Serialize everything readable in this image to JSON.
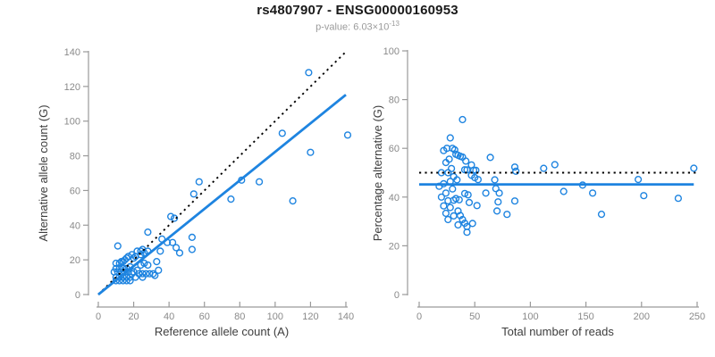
{
  "header": {
    "title": "rs4807907 - ENSG00000160953",
    "subtitle_base": "p-value: 6.03×10",
    "subtitle_exponent": "-13"
  },
  "colors": {
    "points": "#1E84E0",
    "fit_line": "#1E84E0",
    "reference_line": "#000000",
    "axis": "#9a9a9a",
    "tick_label": "#8a8a8a",
    "axis_title": "#3d3d3d",
    "title": "#1a1a1a",
    "subtitle": "#9b9b9b"
  },
  "points_ref_alt": [
    [
      10,
      8
    ],
    [
      12,
      8
    ],
    [
      14,
      8
    ],
    [
      16,
      8
    ],
    [
      18,
      8
    ],
    [
      25,
      10
    ],
    [
      10,
      10
    ],
    [
      12,
      10
    ],
    [
      14,
      10
    ],
    [
      16,
      10
    ],
    [
      18,
      10
    ],
    [
      21,
      10
    ],
    [
      32,
      11
    ],
    [
      19,
      12
    ],
    [
      23,
      12
    ],
    [
      25,
      12
    ],
    [
      27,
      12
    ],
    [
      29,
      12
    ],
    [
      31,
      12
    ],
    [
      9,
      13
    ],
    [
      11,
      13
    ],
    [
      13,
      13
    ],
    [
      15,
      13
    ],
    [
      17,
      13
    ],
    [
      20,
      13
    ],
    [
      34,
      14
    ],
    [
      22,
      14
    ],
    [
      10,
      15
    ],
    [
      12,
      15
    ],
    [
      14,
      15
    ],
    [
      16,
      15
    ],
    [
      18,
      16
    ],
    [
      24,
      17
    ],
    [
      28,
      17
    ],
    [
      26,
      18
    ],
    [
      10,
      18
    ],
    [
      12,
      18
    ],
    [
      13,
      19
    ],
    [
      14,
      19
    ],
    [
      33,
      19
    ],
    [
      15,
      20
    ],
    [
      16,
      21
    ],
    [
      20,
      21
    ],
    [
      17,
      22
    ],
    [
      21,
      22
    ],
    [
      19,
      23
    ],
    [
      24,
      23
    ],
    [
      22,
      25
    ],
    [
      26,
      24
    ],
    [
      24,
      25
    ],
    [
      28,
      25
    ],
    [
      35,
      25
    ],
    [
      25,
      26
    ],
    [
      11,
      28
    ],
    [
      28,
      36
    ],
    [
      39,
      30
    ],
    [
      42,
      30
    ],
    [
      36,
      32
    ],
    [
      53,
      33
    ],
    [
      44,
      27
    ],
    [
      46,
      24
    ],
    [
      53,
      26
    ],
    [
      41,
      45
    ],
    [
      43,
      44
    ],
    [
      54,
      58
    ],
    [
      57,
      65
    ],
    [
      75,
      55
    ],
    [
      81,
      66
    ],
    [
      91,
      65
    ],
    [
      110,
      54
    ],
    [
      104,
      93
    ],
    [
      120,
      82
    ],
    [
      141,
      92
    ],
    [
      119,
      128
    ]
  ],
  "chart_data": [
    {
      "type": "scatter",
      "id": "left",
      "xlabel": "Reference allele count (A)",
      "ylabel": "Alternative allele count (G)",
      "xlim": [
        0,
        140
      ],
      "ylim": [
        0,
        140
      ],
      "xticks": [
        0,
        20,
        40,
        60,
        80,
        100,
        120,
        140
      ],
      "yticks": [
        0,
        20,
        40,
        60,
        80,
        100,
        120,
        140
      ],
      "points_source": "x = ref, y = alt (from points_ref_alt)",
      "grid": false,
      "lines": [
        {
          "name": "identity-line",
          "style": "dotted",
          "color": "#000000",
          "from": [
            0,
            0
          ],
          "to": [
            140,
            140
          ]
        },
        {
          "name": "fit-line",
          "style": "solid",
          "color": "#1E84E0",
          "from": [
            0,
            0
          ],
          "to": [
            140,
            115.2
          ]
        }
      ]
    },
    {
      "type": "scatter",
      "id": "right",
      "xlabel": "Total number of reads",
      "ylabel": "Percentage alternative (G)",
      "xlim": [
        0,
        250
      ],
      "ylim": [
        0,
        100
      ],
      "xticks": [
        0,
        50,
        100,
        150,
        200,
        250
      ],
      "yticks": [
        0,
        20,
        40,
        60,
        80,
        100
      ],
      "points_source": "x = ref+alt, y = 100*alt/(ref+alt) (from points_ref_alt)",
      "grid": false,
      "lines": [
        {
          "name": "reference-50pct-line",
          "style": "dotted",
          "color": "#000000",
          "from": [
            0,
            50
          ],
          "to": [
            252,
            50
          ]
        },
        {
          "name": "fit-line",
          "style": "solid",
          "color": "#1E84E0",
          "from": [
            0,
            45.2
          ],
          "to": [
            247,
            45.2
          ]
        }
      ]
    }
  ]
}
